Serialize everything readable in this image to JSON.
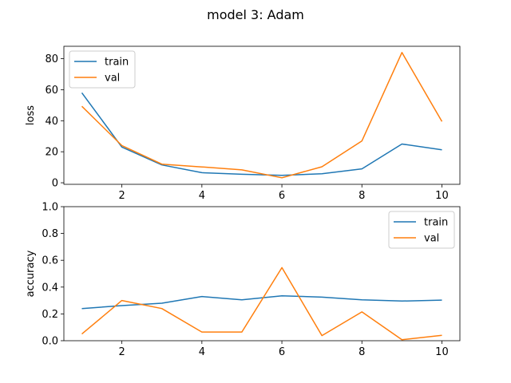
{
  "figure": {
    "suptitle": "model 3: Adam"
  },
  "colors": {
    "train": "#1f77b4",
    "val": "#ff7f0e"
  },
  "chart_data": [
    {
      "type": "line",
      "ylabel": "loss",
      "xlabel": "",
      "x": [
        1,
        2,
        3,
        4,
        5,
        6,
        7,
        8,
        9,
        10
      ],
      "xlim": [
        0.55,
        10.45
      ],
      "ylim": [
        -1,
        88
      ],
      "xticks": [
        2,
        4,
        6,
        8,
        10
      ],
      "yticks": [
        0,
        20,
        40,
        60,
        80
      ],
      "series": [
        {
          "name": "train",
          "values": [
            58.0,
            23.0,
            11.5,
            6.5,
            5.5,
            4.8,
            5.8,
            9.0,
            25.0,
            21.2
          ]
        },
        {
          "name": "val",
          "values": [
            49.3,
            24.0,
            12.0,
            10.2,
            8.3,
            3.2,
            10.3,
            27.0,
            84.0,
            39.5
          ]
        }
      ],
      "legend_position": "upper-left",
      "grid": false
    },
    {
      "type": "line",
      "ylabel": "accuracy",
      "xlabel": "",
      "x": [
        1,
        2,
        3,
        4,
        5,
        6,
        7,
        8,
        9,
        10
      ],
      "xlim": [
        0.55,
        10.45
      ],
      "ylim": [
        0,
        1
      ],
      "xticks": [
        2,
        4,
        6,
        8,
        10
      ],
      "yticks": [
        0.0,
        0.2,
        0.4,
        0.6,
        0.8,
        1.0
      ],
      "ytick_labels": [
        "0.0",
        "0.2",
        "0.4",
        "0.6",
        "0.8",
        "1.0"
      ],
      "series": [
        {
          "name": "train",
          "values": [
            0.24,
            0.262,
            0.28,
            0.33,
            0.305,
            0.335,
            0.325,
            0.305,
            0.296,
            0.303
          ]
        },
        {
          "name": "val",
          "values": [
            0.05,
            0.3,
            0.24,
            0.065,
            0.065,
            0.545,
            0.038,
            0.215,
            0.008,
            0.04
          ]
        }
      ],
      "legend_position": "upper-right",
      "grid": false
    }
  ]
}
